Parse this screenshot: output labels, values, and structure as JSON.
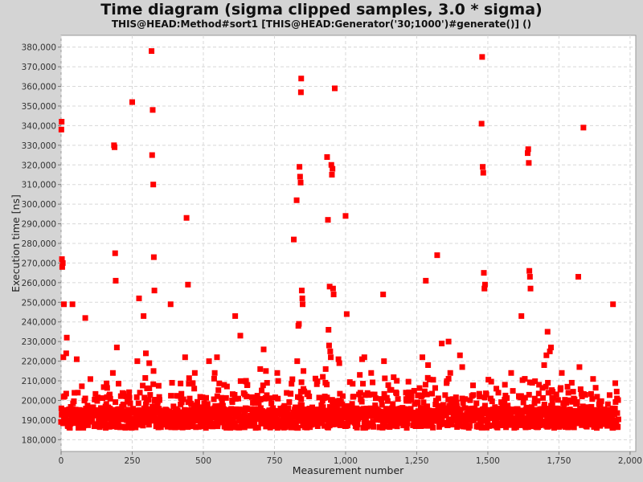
{
  "chart_data": {
    "type": "scatter",
    "title": "Time diagram (sigma clipped samples, 3.0 * sigma)",
    "subtitle": "THIS@HEAD:Method#sort1 [THIS@HEAD:Generator('30;1000')#generate()] ()",
    "xlabel": "Measurement number",
    "ylabel": "Execution time [ns]",
    "xlim": [
      0,
      2020
    ],
    "ylim": [
      174000,
      386000
    ],
    "x_ticks": [
      0,
      250,
      500,
      750,
      1000,
      1250,
      1500,
      1750,
      2000
    ],
    "x_tick_labels": [
      "0",
      "250",
      "500",
      "750",
      "1,000",
      "1,250",
      "1,500",
      "1,750",
      "2,000"
    ],
    "y_ticks": [
      180000,
      190000,
      200000,
      210000,
      220000,
      230000,
      240000,
      250000,
      260000,
      270000,
      280000,
      290000,
      300000,
      310000,
      320000,
      330000,
      340000,
      350000,
      360000,
      370000,
      380000
    ],
    "y_tick_labels": [
      "180,000",
      "190,000",
      "200,000",
      "210,000",
      "220,000",
      "230,000",
      "240,000",
      "250,000",
      "260,000",
      "270,000",
      "280,000",
      "290,000",
      "300,000",
      "310,000",
      "320,000",
      "330,000",
      "340,000",
      "350,000",
      "360,000",
      "370,000",
      "380,000"
    ],
    "grid": true,
    "marker_color": "#ff0000",
    "series": [
      {
        "values": [
          [
            2,
            342000
          ],
          [
            1,
            338000
          ],
          [
            3,
            272000
          ],
          [
            4,
            268000
          ],
          [
            6,
            270000
          ],
          [
            10,
            249000
          ],
          [
            20,
            232000
          ],
          [
            40,
            249000
          ],
          [
            18,
            224000
          ],
          [
            8,
            222000
          ],
          [
            55,
            221000
          ],
          [
            85,
            242000
          ],
          [
            186,
            330000
          ],
          [
            188,
            329000
          ],
          [
            190,
            275000
          ],
          [
            192,
            261000
          ],
          [
            196,
            227000
          ],
          [
            182,
            214000
          ],
          [
            250,
            352000
          ],
          [
            268,
            220000
          ],
          [
            274,
            252000
          ],
          [
            290,
            243000
          ],
          [
            298,
            224000
          ],
          [
            318,
            378000
          ],
          [
            322,
            348000
          ],
          [
            320,
            325000
          ],
          [
            324,
            310000
          ],
          [
            326,
            273000
          ],
          [
            328,
            256000
          ],
          [
            325,
            215000
          ],
          [
            310,
            219000
          ],
          [
            385,
            249000
          ],
          [
            436,
            222000
          ],
          [
            441,
            293000
          ],
          [
            446,
            259000
          ],
          [
            390,
            209000
          ],
          [
            420,
            198000
          ],
          [
            470,
            214000
          ],
          [
            520,
            220000
          ],
          [
            548,
            222000
          ],
          [
            540,
            214000
          ],
          [
            612,
            243000
          ],
          [
            630,
            233000
          ],
          [
            650,
            210000
          ],
          [
            700,
            216000
          ],
          [
            712,
            226000
          ],
          [
            720,
            215000
          ],
          [
            760,
            214000
          ],
          [
            818,
            282000
          ],
          [
            828,
            302000
          ],
          [
            834,
            238000
          ],
          [
            836,
            239000
          ],
          [
            838,
            319000
          ],
          [
            840,
            314000
          ],
          [
            842,
            311000
          ],
          [
            843,
            357000
          ],
          [
            844,
            364000
          ],
          [
            846,
            256000
          ],
          [
            848,
            252000
          ],
          [
            849,
            249000
          ],
          [
            830,
            220000
          ],
          [
            852,
            215000
          ],
          [
            935,
            324000
          ],
          [
            938,
            292000
          ],
          [
            940,
            236000
          ],
          [
            944,
            258000
          ],
          [
            950,
            320000
          ],
          [
            952,
            315000
          ],
          [
            954,
            318000
          ],
          [
            956,
            257000
          ],
          [
            958,
            254000
          ],
          [
            962,
            359000
          ],
          [
            942,
            228000
          ],
          [
            946,
            225000
          ],
          [
            948,
            222000
          ],
          [
            930,
            216000
          ],
          [
            920,
            212000
          ],
          [
            975,
            221000
          ],
          [
            978,
            219000
          ],
          [
            1000,
            294000
          ],
          [
            1004,
            244000
          ],
          [
            1058,
            221000
          ],
          [
            1066,
            222000
          ],
          [
            1050,
            213000
          ],
          [
            1090,
            214000
          ],
          [
            1132,
            254000
          ],
          [
            1135,
            220000
          ],
          [
            1180,
            210000
          ],
          [
            1270,
            222000
          ],
          [
            1282,
            261000
          ],
          [
            1290,
            218000
          ],
          [
            1322,
            274000
          ],
          [
            1338,
            229000
          ],
          [
            1362,
            230000
          ],
          [
            1368,
            214000
          ],
          [
            1402,
            223000
          ],
          [
            1410,
            217000
          ],
          [
            1480,
            375000
          ],
          [
            1478,
            341000
          ],
          [
            1482,
            319000
          ],
          [
            1484,
            316000
          ],
          [
            1486,
            265000
          ],
          [
            1488,
            257000
          ],
          [
            1490,
            259000
          ],
          [
            1530,
            206000
          ],
          [
            1560,
            208000
          ],
          [
            1582,
            214000
          ],
          [
            1618,
            243000
          ],
          [
            1630,
            211000
          ],
          [
            1640,
            326000
          ],
          [
            1642,
            328000
          ],
          [
            1644,
            321000
          ],
          [
            1646,
            266000
          ],
          [
            1648,
            263000
          ],
          [
            1650,
            257000
          ],
          [
            1656,
            209000
          ],
          [
            1680,
            208000
          ],
          [
            1698,
            218000
          ],
          [
            1706,
            223000
          ],
          [
            1710,
            235000
          ],
          [
            1718,
            225000
          ],
          [
            1722,
            227000
          ],
          [
            1760,
            214000
          ],
          [
            1780,
            207000
          ],
          [
            1818,
            263000
          ],
          [
            1822,
            217000
          ],
          [
            1836,
            339000
          ],
          [
            1940,
            249000
          ]
        ]
      }
    ]
  }
}
